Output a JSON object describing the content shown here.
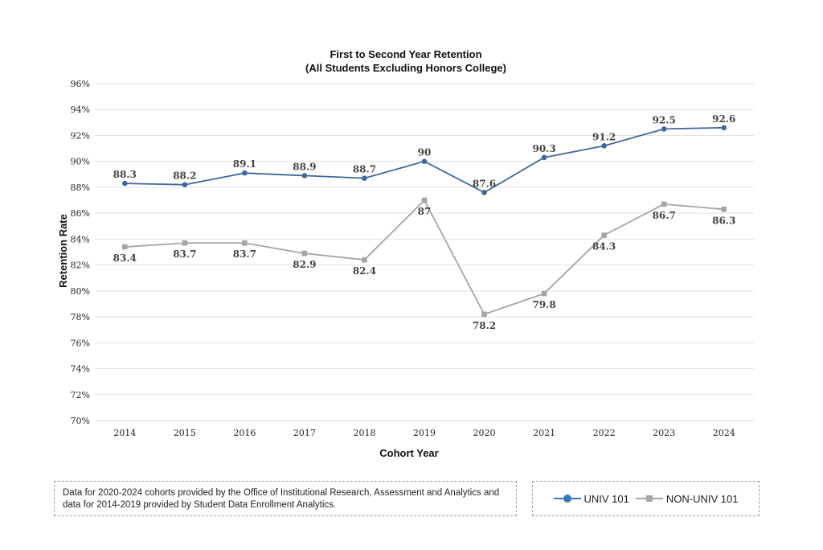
{
  "chart_data": {
    "type": "line",
    "title": "First to Second Year Retention",
    "subtitle": "(All Students Excluding Honors College)",
    "xlabel": "Cohort Year",
    "ylabel": "Retention Rate",
    "categories": [
      "2014",
      "2015",
      "2016",
      "2017",
      "2018",
      "2019",
      "2020",
      "2021",
      "2022",
      "2023",
      "2024"
    ],
    "ylim": [
      70,
      96
    ],
    "yticks": [
      70,
      72,
      74,
      76,
      78,
      80,
      82,
      84,
      86,
      88,
      90,
      92,
      94,
      96
    ],
    "ytick_labels": [
      "70%",
      "72%",
      "74%",
      "76%",
      "78%",
      "80%",
      "82%",
      "84%",
      "86%",
      "88%",
      "90%",
      "92%",
      "94%",
      "96%"
    ],
    "grid": true,
    "legend_position": "bottom-right",
    "series": [
      {
        "name": "UNIV 101",
        "color": "#41679a",
        "legend_color": "#3a78b8",
        "marker": "circle",
        "label_position": "above",
        "values": [
          88.3,
          88.2,
          89.1,
          88.9,
          88.7,
          90,
          87.6,
          90.3,
          91.2,
          92.5,
          92.6
        ],
        "labels": [
          "88.3",
          "88.2",
          "89.1",
          "88.9",
          "88.7",
          "90",
          "87.6",
          "90.3",
          "91.2",
          "92.5",
          "92.6"
        ]
      },
      {
        "name": "NON-UNIV 101",
        "color": "#a5a5a5",
        "legend_color": "#a5a5a5",
        "marker": "square",
        "label_position": "below",
        "values": [
          83.4,
          83.7,
          83.7,
          82.9,
          82.4,
          87,
          78.2,
          79.8,
          84.3,
          86.7,
          86.3
        ],
        "labels": [
          "83.4",
          "83.7",
          "83.7",
          "82.9",
          "82.4",
          "87",
          "78.2",
          "79.8",
          "84.3",
          "86.7",
          "86.3"
        ]
      }
    ]
  },
  "footnote": "Data for 2020-2024 cohorts provided by the Office of Institutional Research, Assessment and Analytics and data for 2014-2019 provided by Student Data Enrollment Analytics.",
  "legend": {
    "items": [
      {
        "label": "UNIV 101"
      },
      {
        "label": "NON-UNIV 101"
      }
    ]
  }
}
